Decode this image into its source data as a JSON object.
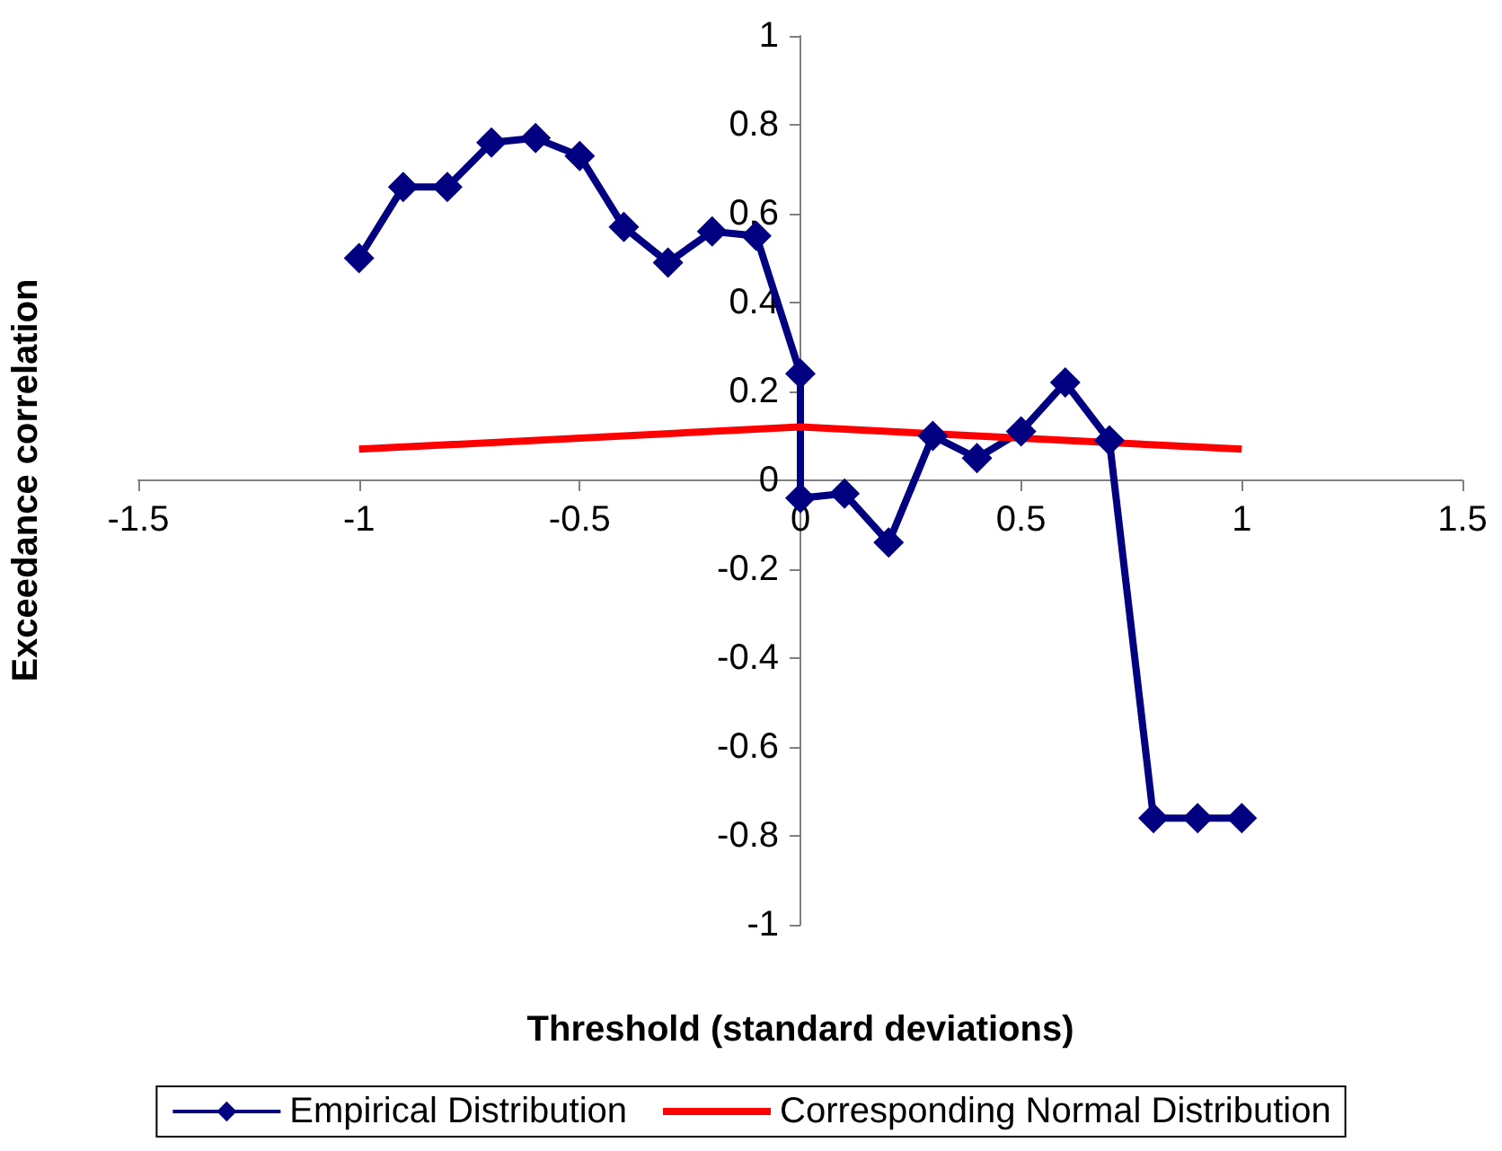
{
  "chart_data": {
    "type": "line",
    "xlabel": "Threshold (standard deviations)",
    "ylabel": "Exceedance correlation",
    "xlim": [
      -1.5,
      1.5
    ],
    "xticks": [
      -1.5,
      -1,
      -0.5,
      0,
      0.5,
      1,
      1.5
    ],
    "ylim": [
      -1,
      1
    ],
    "yticks": [
      -1,
      -0.8,
      -0.6,
      -0.4,
      -0.2,
      0,
      0.2,
      0.4,
      0.6,
      0.8,
      1
    ],
    "grid": false,
    "legend": "bottom",
    "series": [
      {
        "name": "Empirical Distribution",
        "color": "#000080",
        "marker": "diamond",
        "x": [
          -1,
          -0.9,
          -0.8,
          -0.7,
          -0.6,
          -0.5,
          -0.4,
          -0.3,
          -0.2,
          -0.1,
          0,
          0,
          0.1,
          0.2,
          0.3,
          0.4,
          0.5,
          0.6,
          0.7,
          0.8,
          0.9,
          1
        ],
        "values": [
          0.5,
          0.66,
          0.66,
          0.76,
          0.77,
          0.73,
          0.57,
          0.49,
          0.56,
          0.55,
          0.24,
          -0.04,
          -0.03,
          -0.14,
          0.1,
          0.05,
          0.11,
          0.22,
          0.09,
          -0.76,
          -0.76,
          -0.76
        ]
      },
      {
        "name": "Corresponding Normal Distribution",
        "color": "#ff0000",
        "marker": "none",
        "x": [
          -1,
          0,
          1
        ],
        "values": [
          0.07,
          0.12,
          0.07
        ]
      }
    ]
  }
}
